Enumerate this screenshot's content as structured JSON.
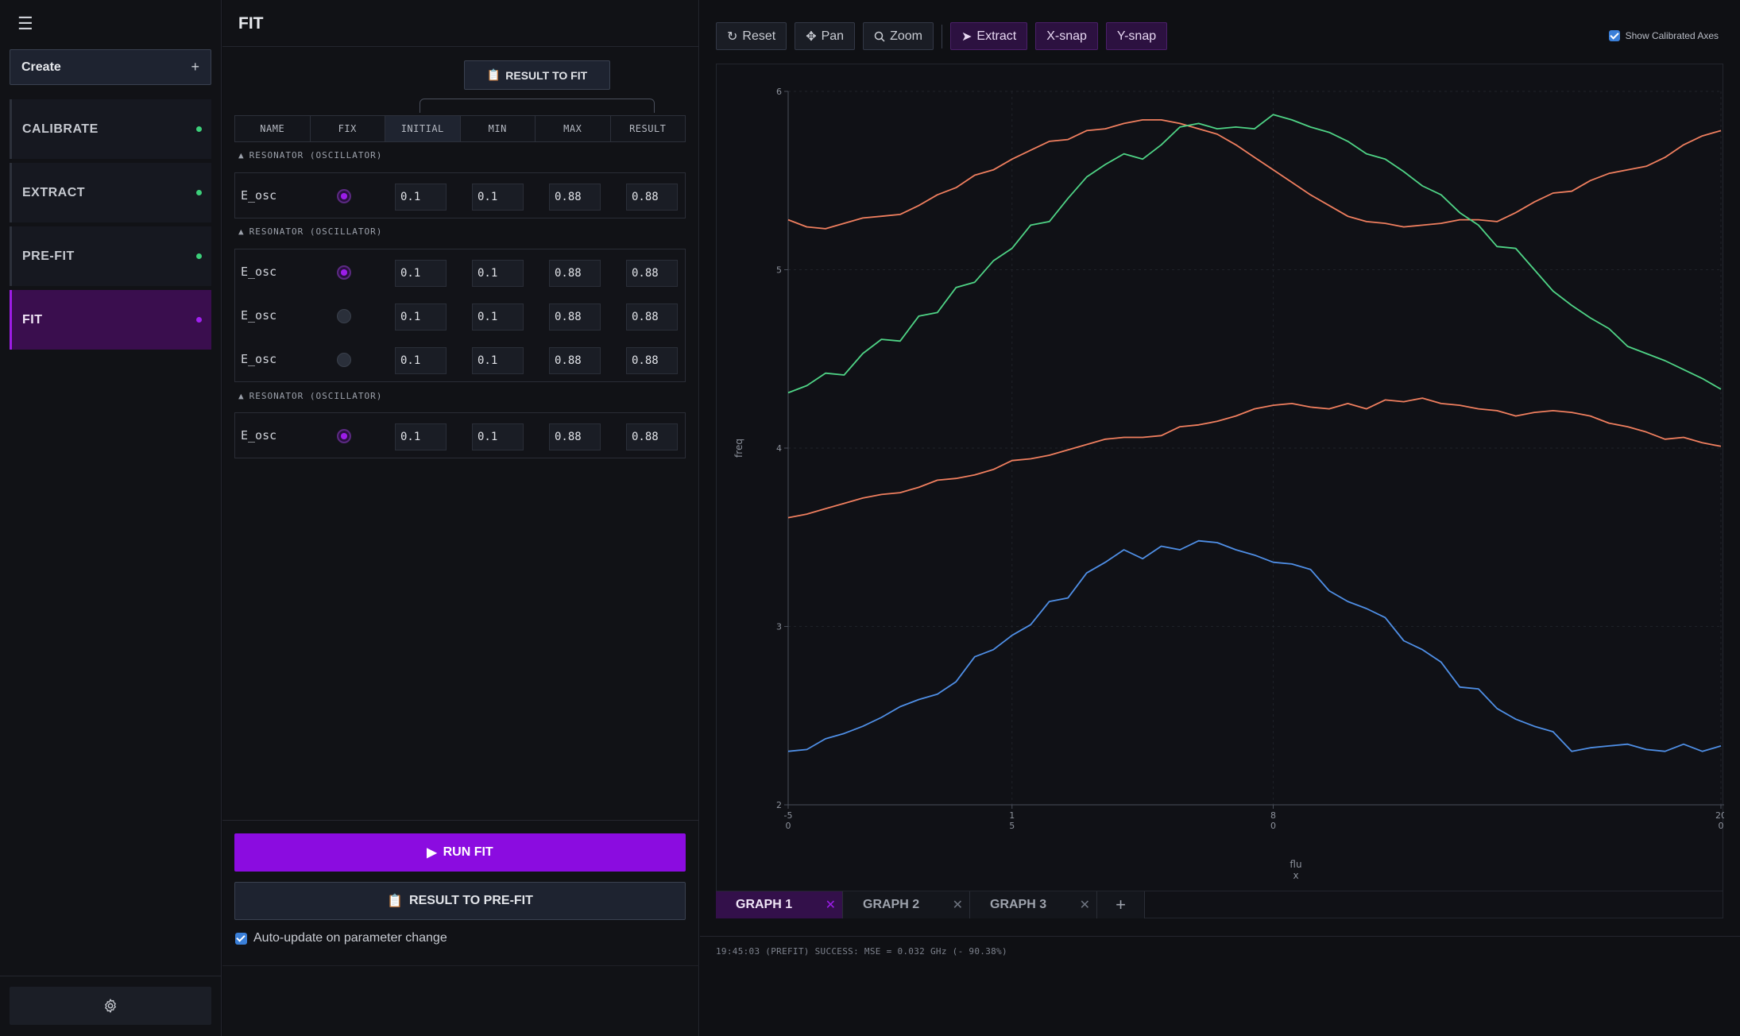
{
  "sidebar": {
    "menu_icon": "hamburger-icon",
    "create_label": "Create",
    "create_icon": "+",
    "items": [
      {
        "label": "CALIBRATE",
        "status": "done"
      },
      {
        "label": "EXTRACT",
        "status": "done"
      },
      {
        "label": "PRE-FIT",
        "status": "done"
      },
      {
        "label": "FIT",
        "status": "active"
      }
    ],
    "settings_icon": "gear-icon"
  },
  "fit": {
    "title": "FIT",
    "result_to_fit": "RESULT TO FIT",
    "columns": [
      "NAME",
      "FIX",
      "INITIAL",
      "MIN",
      "MAX",
      "RESULT"
    ],
    "groups": [
      {
        "label": "RESONATOR (OSCILLATOR)",
        "rows": [
          {
            "name": "E_osc",
            "fixed": true,
            "initial": "0.1",
            "min": "0.1",
            "max": "0.88",
            "result": "0.88"
          }
        ]
      },
      {
        "label": "RESONATOR (OSCILLATOR)",
        "rows": [
          {
            "name": "E_osc",
            "fixed": true,
            "initial": "0.1",
            "min": "0.1",
            "max": "0.88",
            "result": "0.88"
          },
          {
            "name": "E_osc",
            "fixed": false,
            "initial": "0.1",
            "min": "0.1",
            "max": "0.88",
            "result": "0.88"
          },
          {
            "name": "E_osc",
            "fixed": false,
            "initial": "0.1",
            "min": "0.1",
            "max": "0.88",
            "result": "0.88"
          }
        ]
      },
      {
        "label": "RESONATOR (OSCILLATOR)",
        "rows": [
          {
            "name": "E_osc",
            "fixed": true,
            "initial": "0.1",
            "min": "0.1",
            "max": "0.88",
            "result": "0.88"
          }
        ]
      }
    ],
    "run_fit": "RUN FIT",
    "result_to_prefit": "RESULT TO PRE-FIT",
    "auto_update": "Auto-update on parameter change",
    "auto_update_checked": true
  },
  "toolbar": {
    "reset": "Reset",
    "pan": "Pan",
    "zoom": "Zoom",
    "extract": "Extract",
    "xsnap": "X-snap",
    "ysnap": "Y-snap",
    "show_calibrated": "Show Calibrated Axes",
    "show_calibrated_checked": true
  },
  "graph_tabs": {
    "tabs": [
      "GRAPH 1",
      "GRAPH 2",
      "GRAPH 3"
    ],
    "active": 0,
    "add_icon": "+"
  },
  "status": "19:45:03 (PREFIT) SUCCESS: MSE = 0.032 GHz (- 90.38%)",
  "colors": {
    "accent": "#8b0ce0",
    "done": "#3ccf7a",
    "orange": "#f07f5f",
    "green": "#4fd486",
    "blue": "#4f8fe6"
  },
  "chart_data": {
    "type": "line",
    "xlabel": "flux",
    "ylabel": "freq",
    "xlim": [
      -5,
      20
    ],
    "ylim": [
      2,
      6
    ],
    "x_ticks": [
      {
        "value": -5,
        "label": "-5",
        "sub": "0"
      },
      {
        "value": 1,
        "label": "1",
        "sub": "5"
      },
      {
        "value": 8,
        "label": "8",
        "sub": "0"
      },
      {
        "value": 20,
        "label": "20",
        "sub": "0"
      }
    ],
    "y_ticks": [
      2,
      3,
      4,
      5,
      6
    ],
    "grid": true,
    "series": [
      {
        "color": "#f07f5f",
        "x": [
          -5,
          -4.5,
          -4,
          -3.5,
          -3,
          -2.5,
          -2,
          -1.5,
          -1,
          -0.5,
          0,
          0.5,
          1,
          1.5,
          2,
          2.5,
          3,
          3.5,
          4,
          4.5,
          5,
          5.5,
          6,
          6.5,
          7,
          7.5,
          8,
          8.5,
          9,
          9.5,
          10,
          10.5,
          11,
          11.5,
          12,
          12.5,
          13,
          13.5,
          14,
          14.5,
          15,
          15.5,
          16,
          16.5,
          17,
          17.5,
          18,
          18.5,
          19,
          19.5,
          20
        ],
        "y": [
          5.28,
          5.24,
          5.23,
          5.26,
          5.29,
          5.3,
          5.31,
          5.36,
          5.42,
          5.46,
          5.53,
          5.56,
          5.62,
          5.67,
          5.72,
          5.73,
          5.78,
          5.79,
          5.82,
          5.84,
          5.84,
          5.82,
          5.79,
          5.76,
          5.7,
          5.63,
          5.56,
          5.49,
          5.42,
          5.36,
          5.3,
          5.27,
          5.26,
          5.24,
          5.25,
          5.26,
          5.28,
          5.28,
          5.27,
          5.32,
          5.38,
          5.43,
          5.44,
          5.5,
          5.54,
          5.56,
          5.58,
          5.63,
          5.7,
          5.75,
          5.78
        ]
      },
      {
        "color": "#4fd486",
        "x": [
          -5,
          -4.5,
          -4,
          -3.5,
          -3,
          -2.5,
          -2,
          -1.5,
          -1,
          -0.5,
          0,
          0.5,
          1,
          1.5,
          2,
          2.5,
          3,
          3.5,
          4,
          4.5,
          5,
          5.5,
          6,
          6.5,
          7,
          7.5,
          8,
          8.5,
          9,
          9.5,
          10,
          10.5,
          11,
          11.5,
          12,
          12.5,
          13,
          13.5,
          14,
          14.5,
          15,
          15.5,
          16,
          16.5,
          17,
          17.5,
          18,
          18.5,
          19,
          19.5,
          20
        ],
        "y": [
          4.31,
          4.35,
          4.42,
          4.41,
          4.53,
          4.61,
          4.6,
          4.74,
          4.76,
          4.9,
          4.93,
          5.05,
          5.12,
          5.25,
          5.27,
          5.4,
          5.52,
          5.59,
          5.65,
          5.62,
          5.7,
          5.8,
          5.82,
          5.79,
          5.8,
          5.79,
          5.87,
          5.84,
          5.8,
          5.77,
          5.72,
          5.65,
          5.62,
          5.55,
          5.47,
          5.42,
          5.32,
          5.25,
          5.13,
          5.12,
          5.0,
          4.88,
          4.8,
          4.73,
          4.67,
          4.57,
          4.53,
          4.49,
          4.44,
          4.39,
          4.33
        ]
      },
      {
        "color": "#f07f5f",
        "x": [
          -5,
          -4.5,
          -4,
          -3.5,
          -3,
          -2.5,
          -2,
          -1.5,
          -1,
          -0.5,
          0,
          0.5,
          1,
          1.5,
          2,
          2.5,
          3,
          3.5,
          4,
          4.5,
          5,
          5.5,
          6,
          6.5,
          7,
          7.5,
          8,
          8.5,
          9,
          9.5,
          10,
          10.5,
          11,
          11.5,
          12,
          12.5,
          13,
          13.5,
          14,
          14.5,
          15,
          15.5,
          16,
          16.5,
          17,
          17.5,
          18,
          18.5,
          19,
          19.5,
          20
        ],
        "y": [
          3.61,
          3.63,
          3.66,
          3.69,
          3.72,
          3.74,
          3.75,
          3.78,
          3.82,
          3.83,
          3.85,
          3.88,
          3.93,
          3.94,
          3.96,
          3.99,
          4.02,
          4.05,
          4.06,
          4.06,
          4.07,
          4.12,
          4.13,
          4.15,
          4.18,
          4.22,
          4.24,
          4.25,
          4.23,
          4.22,
          4.25,
          4.22,
          4.27,
          4.26,
          4.28,
          4.25,
          4.24,
          4.22,
          4.21,
          4.18,
          4.2,
          4.21,
          4.2,
          4.18,
          4.14,
          4.12,
          4.09,
          4.05,
          4.06,
          4.03,
          4.01
        ]
      },
      {
        "color": "#4f8fe6",
        "x": [
          -5,
          -4.5,
          -4,
          -3.5,
          -3,
          -2.5,
          -2,
          -1.5,
          -1,
          -0.5,
          0,
          0.5,
          1,
          1.5,
          2,
          2.5,
          3,
          3.5,
          4,
          4.5,
          5,
          5.5,
          6,
          6.5,
          7,
          7.5,
          8,
          8.5,
          9,
          9.5,
          10,
          10.5,
          11,
          11.5,
          12,
          12.5,
          13,
          13.5,
          14,
          14.5,
          15,
          15.5,
          16,
          16.5,
          17,
          17.5,
          18,
          18.5,
          19,
          19.5,
          20
        ],
        "y": [
          2.3,
          2.31,
          2.37,
          2.4,
          2.44,
          2.49,
          2.55,
          2.59,
          2.62,
          2.69,
          2.83,
          2.87,
          2.95,
          3.01,
          3.14,
          3.16,
          3.3,
          3.36,
          3.43,
          3.38,
          3.45,
          3.43,
          3.48,
          3.47,
          3.43,
          3.4,
          3.36,
          3.35,
          3.32,
          3.2,
          3.14,
          3.1,
          3.05,
          2.92,
          2.87,
          2.8,
          2.66,
          2.65,
          2.54,
          2.48,
          2.44,
          2.41,
          2.3,
          2.32,
          2.33,
          2.34,
          2.31,
          2.3,
          2.34,
          2.3,
          2.33
        ]
      }
    ]
  }
}
